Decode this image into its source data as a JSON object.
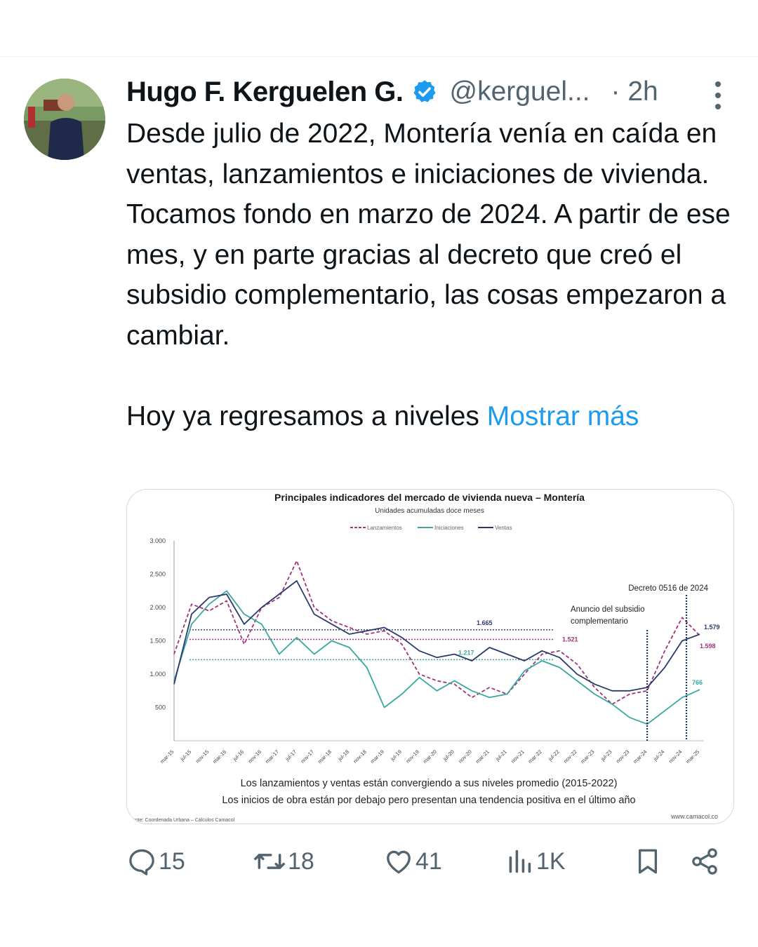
{
  "tweet": {
    "author_name": "Hugo F. Kerguelen G.",
    "handle": "@kerguel...",
    "time": "· 2h",
    "text": "Desde julio de 2022, Montería venía en caída en ventas, lanzamientos e iniciaciones de vivienda. Tocamos fondo en marzo de 2024. A partir de ese mes, y en parte gracias al decreto que creó el subsidio complementario, las cosas empezaron a cambiar.\n\nHoy ya regresamos a niveles ",
    "show_more": "Mostrar más",
    "verified_color": "#1d9bf0",
    "link_color": "#1d9bf0"
  },
  "actions": {
    "replies": "15",
    "retweets": "18",
    "likes": "41",
    "views": "1K"
  },
  "chart_data": {
    "type": "line",
    "title": "Principales indicadores del mercado de vivienda nueva – Montería",
    "subtitle": "Unidades acumuladas doce meses",
    "legend": [
      "Lanzamientos",
      "Iniciaciones",
      "Ventas"
    ],
    "y_ticks": [
      "3.000",
      "2.500",
      "2.000",
      "1.500",
      "1.000",
      "500"
    ],
    "ylim": [
      0,
      3000
    ],
    "x_ticks": [
      "mar-15",
      "jul-15",
      "nov-15",
      "mar-16",
      "jul-16",
      "nov-16",
      "mar-17",
      "jul-17",
      "nov-17",
      "mar-18",
      "jul-18",
      "nov-18",
      "mar-19",
      "jul-19",
      "nov-19",
      "mar-20",
      "jul-20",
      "nov-20",
      "mar-21",
      "jul-21",
      "nov-21",
      "mar-22",
      "jul-22",
      "nov-22",
      "mar-23",
      "jul-23",
      "nov-23",
      "mar-24",
      "jul-24",
      "nov-24",
      "mar-25"
    ],
    "series": [
      {
        "name": "Lanzamientos",
        "color": "#a0347a",
        "dash": true,
        "values": [
          1300,
          2050,
          1950,
          2100,
          1450,
          2000,
          2150,
          2700,
          2000,
          1800,
          1700,
          1600,
          1650,
          1450,
          1000,
          900,
          850,
          650,
          800,
          700,
          1000,
          1300,
          1350,
          1150,
          800,
          550,
          700,
          750,
          1350,
          1850,
          1579
        ]
      },
      {
        "name": "Iniciaciones",
        "color": "#3aa8a0",
        "dash": false,
        "values": [
          900,
          1750,
          2050,
          2250,
          1900,
          1750,
          1300,
          1550,
          1300,
          1500,
          1400,
          1100,
          500,
          700,
          950,
          750,
          900,
          750,
          650,
          700,
          1050,
          1200,
          1100,
          900,
          700,
          550,
          350,
          250,
          450,
          650,
          766
        ]
      },
      {
        "name": "Ventas",
        "color": "#2a3a6b",
        "dash": false,
        "values": [
          850,
          1900,
          2150,
          2200,
          1750,
          2000,
          2200,
          2400,
          1900,
          1750,
          1600,
          1650,
          1700,
          1550,
          1350,
          1250,
          1300,
          1200,
          1400,
          1300,
          1200,
          1350,
          1250,
          1000,
          850,
          750,
          750,
          800,
          1100,
          1500,
          1598
        ]
      }
    ],
    "reference_lines": [
      {
        "value": 1665,
        "label": "1.665",
        "color": "#2a3a6b"
      },
      {
        "value": 1521,
        "label": "1.521",
        "color": "#a0347a"
      },
      {
        "value": 1217,
        "label": "1.217",
        "color": "#3aa8a0"
      }
    ],
    "annotations": {
      "decreto": "Decreto 0516 de 2024",
      "anuncio_line1": "Anuncio del subsidio",
      "anuncio_line2": "complementario",
      "end_lanz": "1.579",
      "end_ventas": "1.598",
      "end_inic": "766"
    },
    "caption_line1": "Los lanzamientos y ventas están convergiendo a sus niveles promedio (2015-2022)",
    "caption_line2": "Los inicios de obra están por debajo pero presentan una tendencia positiva en el último año",
    "source": "ente: Coordenada Urbana – Cálculos Camacol",
    "website": "www.camacol.co"
  }
}
